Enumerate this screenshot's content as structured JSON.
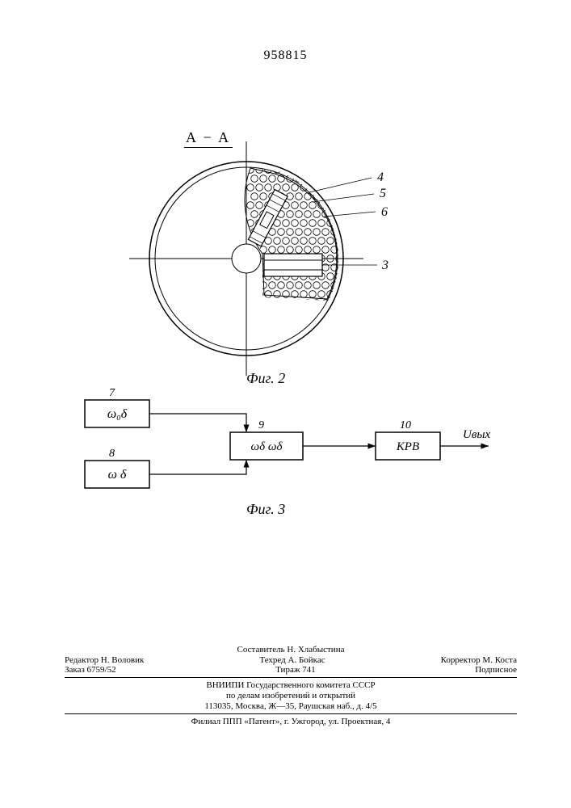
{
  "doc_number": "958815",
  "section_label": "А − А",
  "figure2": {
    "label": "Фиг. 2",
    "outer_radius": 120,
    "inner_radius": 115,
    "hub_radius": 18,
    "stroke": "#000000",
    "callouts": {
      "c3": "3",
      "c4": "4",
      "c5": "5",
      "c6": "6"
    }
  },
  "figure3": {
    "label": "Фиг. 3",
    "blocks": {
      "b7_num": "7",
      "b7_text": "ω₀δ",
      "b8_num": "8",
      "b8_text": "ω δ",
      "b9_num": "9",
      "b9_text": "ωδ ωδ",
      "b10_num": "10",
      "b10_text": "КРВ",
      "out_text": "Uвых"
    },
    "stroke": "#000000",
    "bg": "#ffffff"
  },
  "footer": {
    "compiler": "Составитель Н. Хлабыстина",
    "editor": "Редактор Н. Воловик",
    "tech": "Техред А. Бойкас",
    "corrector": "Корректор М. Коста",
    "order": "Заказ 6759/52",
    "circulation": "Тираж 741",
    "subscription": "Подписное",
    "org1": "ВНИИПИ Государственного комитета СССР",
    "org2": "по делам изобретений и открытий",
    "org3": "113035, Москва, Ж—35, Раушская наб., д. 4/5",
    "org4": "Филиал ППП «Патент», г. Ужгород, ул. Проектная, 4"
  }
}
